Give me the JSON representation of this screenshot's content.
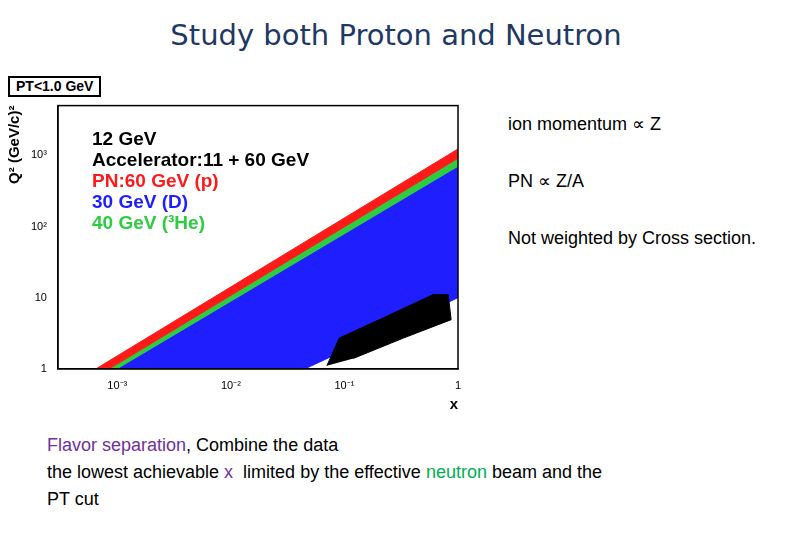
{
  "title": "Study both Proton and Neutron",
  "chart_data": {
    "type": "area",
    "x_label": "x",
    "y_label": "Q² (GeV/c)²",
    "annotations": [
      "PT<1.0 GeV",
      "Accelerator:11 + 60 GeV"
    ],
    "series": [
      {
        "name": "12 GeV",
        "color": "#000000",
        "x": [
          0.07,
          0.09,
          0.22,
          0.6,
          0.82,
          0.87,
          0.33,
          0.12
        ],
        "values": [
          1.1,
          2.7,
          5.2,
          11,
          11,
          4.9,
          2.7,
          1.4
        ]
      },
      {
        "name": "PN:60 GeV (p)",
        "color": "#ff1a1a",
        "x": [
          0.00065,
          1,
          1,
          0.00085
        ],
        "values": [
          1,
          1230,
          910,
          1
        ]
      },
      {
        "name": "30 GeV (D)",
        "color": "#1e1eff",
        "x": [
          0.00103,
          1,
          1,
          0.045
        ],
        "values": [
          1,
          680,
          10,
          1
        ]
      },
      {
        "name": "40 GeV (³He)",
        "color": "#2ecc40",
        "x": [
          0.00085,
          1,
          1,
          0.00103
        ],
        "values": [
          1,
          910,
          680,
          1
        ]
      }
    ],
    "xlim": [
      0.0003,
      1
    ],
    "ylim": [
      1,
      5000
    ],
    "xticks": [
      {
        "value": 0.001,
        "label": "10⁻³"
      },
      {
        "value": 0.01,
        "label": "10⁻²"
      },
      {
        "value": 0.1,
        "label": "10⁻¹"
      },
      1
    ],
    "yticks": [
      1,
      10,
      {
        "value": 100,
        "label": "10²"
      },
      {
        "value": 1000,
        "label": "10³"
      }
    ],
    "log": true,
    "grid": false,
    "legend": "top-left"
  },
  "notes": [
    "ion momentum ∝ Z",
    "PN ∝ Z/A",
    "Not weighted by Cross section."
  ],
  "footer": [
    [
      {
        "text": "Flavor separation",
        "color": "#7030a0"
      },
      {
        "text": ", Combine the data"
      }
    ],
    [
      {
        "text": "the lowest achievable "
      },
      {
        "text": "x",
        "color": "#7030a0"
      },
      {
        "text": "  limited by the effective "
      },
      {
        "text": "neutron",
        "color": "#00b050"
      },
      {
        "text": " beam and the"
      }
    ],
    [
      {
        "text": "PT cut"
      }
    ]
  ]
}
